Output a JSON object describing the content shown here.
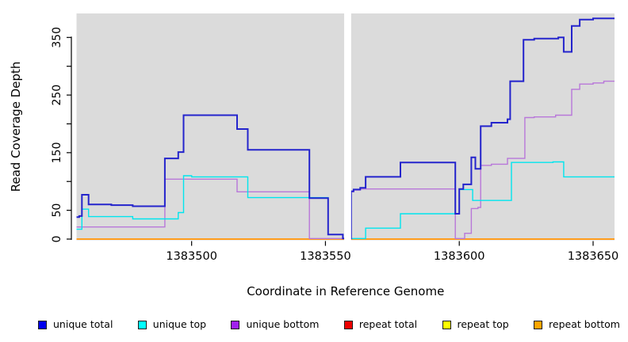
{
  "chart_data": {
    "type": "line",
    "subtype": "step-after-coverage",
    "title": "",
    "xlabel": "Coordinate in Reference Genome",
    "ylabel": "Read Coverage Depth",
    "x_domain": [
      1383457,
      1383658
    ],
    "ylim": [
      0,
      392
    ],
    "x_ticks": [
      1383500,
      1383550,
      1383600,
      1383650
    ],
    "y_ticks": [
      0,
      50,
      100,
      150,
      200,
      250,
      300,
      350
    ],
    "y_tick_labels": [
      "0",
      "50",
      "",
      "150",
      "",
      "250",
      "",
      "350"
    ],
    "grid": false,
    "plot_background": "#dbdbdb",
    "masked_gap": {
      "x0": 1383557,
      "x1": 1383559.6
    },
    "legend_position": "bottom",
    "series": [
      {
        "name": "repeat total",
        "color": "#cd0000",
        "width": 1.4,
        "points": [
          [
            1383457,
            0
          ]
        ]
      },
      {
        "name": "repeat top",
        "color": "#ffff00",
        "width": 1.4,
        "points": [
          [
            1383457,
            0
          ]
        ]
      },
      {
        "name": "repeat bottom",
        "color": "#ff9d1e",
        "width": 2,
        "points": [
          [
            1383457,
            0
          ]
        ]
      },
      {
        "name": "unique bottom",
        "color": "#b877d9",
        "width": 1.4,
        "points": [
          [
            1383457,
            21
          ],
          [
            1383490,
            104
          ],
          [
            1383517,
            82
          ],
          [
            1383544,
            1
          ],
          [
            1383559.6,
            82
          ],
          [
            1383560.5,
            85
          ],
          [
            1383563,
            87
          ],
          [
            1383598.5,
            1
          ],
          [
            1383602,
            10
          ],
          [
            1383604.5,
            53
          ],
          [
            1383607,
            55
          ],
          [
            1383608,
            128
          ],
          [
            1383612,
            130
          ],
          [
            1383618,
            140
          ],
          [
            1383624.5,
            211
          ],
          [
            1383628,
            212
          ],
          [
            1383636,
            215
          ],
          [
            1383642,
            260
          ],
          [
            1383645,
            269
          ],
          [
            1383650,
            271
          ],
          [
            1383654,
            274
          ]
        ]
      },
      {
        "name": "unique top",
        "color": "#00e5ee",
        "width": 1.4,
        "points": [
          [
            1383457,
            17
          ],
          [
            1383459,
            52
          ],
          [
            1383461.5,
            39
          ],
          [
            1383478,
            35
          ],
          [
            1383495,
            46
          ],
          [
            1383497,
            110
          ],
          [
            1383500,
            108
          ],
          [
            1383521,
            72
          ],
          [
            1383551,
            8
          ],
          [
            1383556.5,
            1
          ],
          [
            1383565,
            19
          ],
          [
            1383578,
            44
          ],
          [
            1383600,
            86
          ],
          [
            1383605,
            67
          ],
          [
            1383619.5,
            133
          ],
          [
            1383635,
            134
          ],
          [
            1383639,
            108
          ]
        ]
      },
      {
        "name": "unique total",
        "color": "#2424cc",
        "width": 2,
        "points": [
          [
            1383457,
            38
          ],
          [
            1383458,
            40
          ],
          [
            1383459,
            77
          ],
          [
            1383461.5,
            60
          ],
          [
            1383470,
            59
          ],
          [
            1383478,
            57
          ],
          [
            1383490,
            140
          ],
          [
            1383495,
            151
          ],
          [
            1383497,
            215
          ],
          [
            1383517,
            191
          ],
          [
            1383521,
            155
          ],
          [
            1383544,
            71
          ],
          [
            1383551,
            8
          ],
          [
            1383556.5,
            1
          ],
          [
            1383559.6,
            83
          ],
          [
            1383560.5,
            86
          ],
          [
            1383563,
            89
          ],
          [
            1383565,
            108
          ],
          [
            1383578,
            133
          ],
          [
            1383598.5,
            44
          ],
          [
            1383600,
            87
          ],
          [
            1383601.5,
            95
          ],
          [
            1383604.5,
            142
          ],
          [
            1383606,
            122
          ],
          [
            1383608,
            196
          ],
          [
            1383612,
            202
          ],
          [
            1383618,
            208
          ],
          [
            1383619,
            274
          ],
          [
            1383624,
            346
          ],
          [
            1383628,
            348
          ],
          [
            1383637,
            350
          ],
          [
            1383639,
            325
          ],
          [
            1383642,
            370
          ],
          [
            1383645,
            381
          ],
          [
            1383650,
            383
          ]
        ]
      }
    ]
  },
  "axes": {
    "x_title": "Coordinate in Reference Genome",
    "y_title": "Read Coverage Depth"
  },
  "legend": {
    "items": [
      {
        "label": "unique total",
        "color": "#0000ee"
      },
      {
        "label": "unique top",
        "color": "#00ffff"
      },
      {
        "label": "unique bottom",
        "color": "#a020f0"
      },
      {
        "label": "repeat total",
        "color": "#ee0000"
      },
      {
        "label": "repeat top",
        "color": "#ffff00"
      },
      {
        "label": "repeat bottom",
        "color": "#ffa500"
      }
    ]
  }
}
